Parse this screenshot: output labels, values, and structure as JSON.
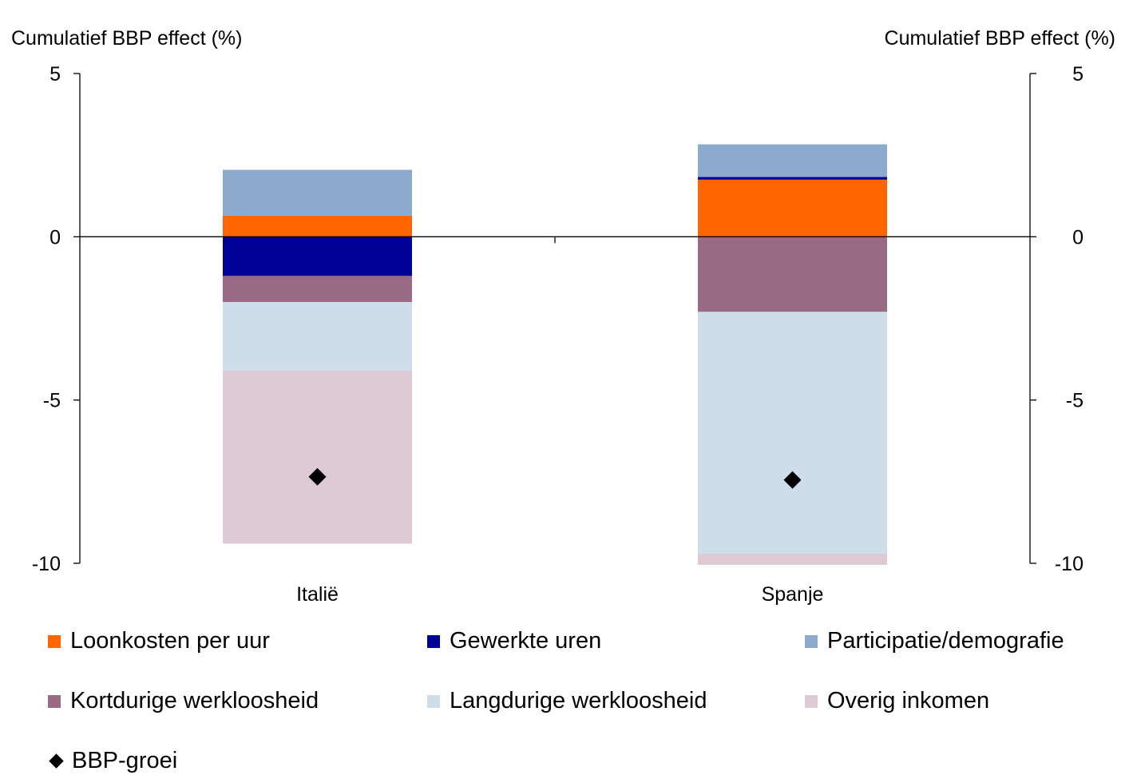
{
  "chart_data": {
    "type": "bar",
    "stacked": true,
    "ylabel_left": "Cumulatief BBP effect (%)",
    "ylabel_right": "Cumulatief BBP effect (%)",
    "ylim": [
      -10,
      5
    ],
    "yticks": [
      5,
      0,
      -5,
      -10
    ],
    "grid": false,
    "legend_position": "bottom",
    "categories": [
      "Italië",
      "Spanje"
    ],
    "series": [
      {
        "name": "Loonkosten per uur",
        "color": "#FF6600",
        "values": [
          0.65,
          1.75
        ]
      },
      {
        "name": "Gewerkte uren",
        "color": "#000099",
        "values": [
          -1.2,
          0.08
        ]
      },
      {
        "name": "Participatie/demografie",
        "color": "#8BAACE",
        "values": [
          1.4,
          1.0
        ]
      },
      {
        "name": "Kortdurige werkloosheid",
        "color": "#986A84",
        "values": [
          -0.8,
          -2.3
        ]
      },
      {
        "name": "Langdurige werkloosheid",
        "color": "#CFDDEA",
        "values": [
          -2.1,
          -7.4
        ]
      },
      {
        "name": "Overig inkomen",
        "color": "#DECAD5",
        "values": [
          -5.3,
          -0.35
        ]
      }
    ],
    "markers": {
      "name": "BBP-groei",
      "color": "#000000",
      "values": [
        -7.35,
        -7.45
      ]
    }
  }
}
